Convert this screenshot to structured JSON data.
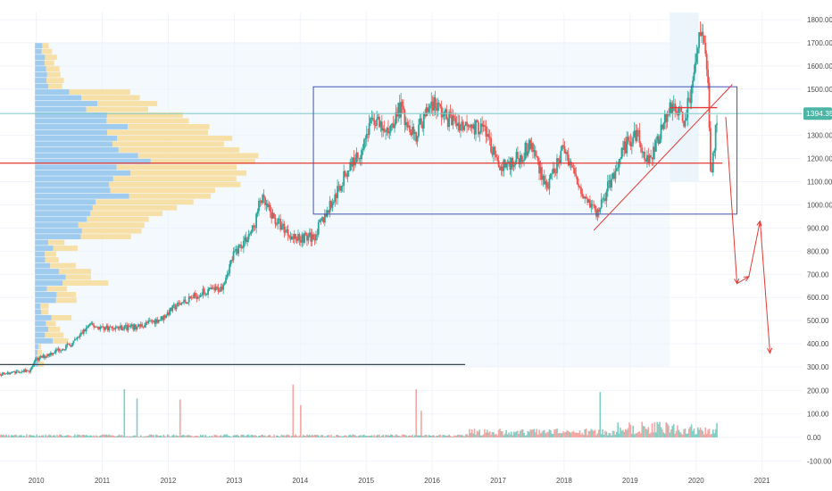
{
  "chart_data": {
    "type": "candlestick",
    "title": "",
    "xlabel": "",
    "ylabel": "",
    "x_ticks": [
      "2010",
      "2011",
      "2012",
      "2013",
      "2014",
      "2015",
      "2016",
      "2017",
      "2018",
      "2019",
      "2020",
      "2021"
    ],
    "x_range": [
      2009.45,
      2021.6
    ],
    "price_axis": {
      "ticks": [
        1800,
        1700,
        1600,
        1500,
        1400,
        1300,
        1200,
        1100,
        1000,
        900,
        800,
        700,
        600,
        500,
        400,
        300
      ],
      "tick_labels": [
        "1800.00",
        "1700.00",
        "1600.00",
        "1500.00",
        "1400.00",
        "1300.00",
        "1200.00",
        "1100.00",
        "1000.00",
        "900.00",
        "800.00",
        "700.00",
        "600.00",
        "500.00",
        "400.00",
        "300.00"
      ]
    },
    "volume_axis": {
      "ticks": [
        200,
        100,
        0,
        -100
      ],
      "tick_labels": [
        "200.00",
        "100.00",
        "0.00",
        "-100.00"
      ]
    },
    "last_price": 1394.35,
    "last_price_label": "1394.35",
    "price_path": [
      [
        2009.45,
        270
      ],
      [
        2009.9,
        285
      ],
      [
        2010.0,
        330
      ],
      [
        2010.3,
        370
      ],
      [
        2010.55,
        400
      ],
      [
        2010.8,
        480
      ],
      [
        2011.0,
        470
      ],
      [
        2011.5,
        470
      ],
      [
        2011.9,
        510
      ],
      [
        2012.1,
        560
      ],
      [
        2012.5,
        620
      ],
      [
        2012.8,
        640
      ],
      [
        2013.0,
        790
      ],
      [
        2013.3,
        900
      ],
      [
        2013.4,
        1030
      ],
      [
        2013.6,
        940
      ],
      [
        2013.9,
        860
      ],
      [
        2014.2,
        860
      ],
      [
        2014.5,
        1020
      ],
      [
        2014.75,
        1170
      ],
      [
        2014.9,
        1220
      ],
      [
        2015.1,
        1380
      ],
      [
        2015.3,
        1300
      ],
      [
        2015.5,
        1420
      ],
      [
        2015.75,
        1300
      ],
      [
        2016.0,
        1450
      ],
      [
        2016.2,
        1380
      ],
      [
        2016.5,
        1340
      ],
      [
        2016.8,
        1330
      ],
      [
        2017.0,
        1160
      ],
      [
        2017.3,
        1200
      ],
      [
        2017.5,
        1260
      ],
      [
        2017.75,
        1070
      ],
      [
        2017.9,
        1180
      ],
      [
        2018.0,
        1250
      ],
      [
        2018.2,
        1100
      ],
      [
        2018.5,
        960
      ],
      [
        2018.7,
        1100
      ],
      [
        2018.9,
        1250
      ],
      [
        2019.1,
        1300
      ],
      [
        2019.3,
        1180
      ],
      [
        2019.5,
        1360
      ],
      [
        2019.65,
        1440
      ],
      [
        2019.8,
        1360
      ],
      [
        2019.95,
        1500
      ],
      [
        2020.05,
        1760
      ],
      [
        2020.12,
        1720
      ],
      [
        2020.18,
        1560
      ],
      [
        2020.22,
        1120
      ],
      [
        2020.27,
        1250
      ],
      [
        2020.32,
        1394.35
      ]
    ],
    "horizontal_levels": [
      {
        "value": 1180,
        "from": 2009.45,
        "to": 2020.4,
        "color": "#e53935"
      },
      {
        "value": 1420,
        "from": 2019.6,
        "to": 2020.32,
        "color": "#e53935"
      },
      {
        "value": 310,
        "from": 2009.45,
        "to": 2016.5,
        "color": "#37474f"
      },
      {
        "value": 1394.35,
        "from": 2009.45,
        "to": 2021.6,
        "color": "#80cbc4"
      }
    ],
    "range_box": {
      "x0": 2014.2,
      "x1": 2020.62,
      "y0": 960,
      "y1": 1510,
      "color": "#3f51b5"
    },
    "trendline": [
      [
        2018.45,
        890
      ],
      [
        2020.55,
        1520
      ]
    ],
    "projection": [
      [
        2020.45,
        1380
      ],
      [
        2020.62,
        660
      ],
      [
        2020.8,
        690
      ],
      [
        2020.97,
        930
      ],
      [
        2021.12,
        360
      ]
    ],
    "volume_profile": {
      "price_range": [
        300,
        1700
      ],
      "rows": 56,
      "peak_value": 1180
    },
    "colors": {
      "up": "#26a69a",
      "down": "#ef5350",
      "volume_up": "#7fcfc5",
      "volume_down": "#f4a6a4",
      "profile_blue": "#9fcbee",
      "profile_yellow": "#f7e0a7",
      "profile_shade": "#eaf4fb",
      "grid": "#f0f3fa",
      "last_price": "#4cb5a6"
    }
  }
}
